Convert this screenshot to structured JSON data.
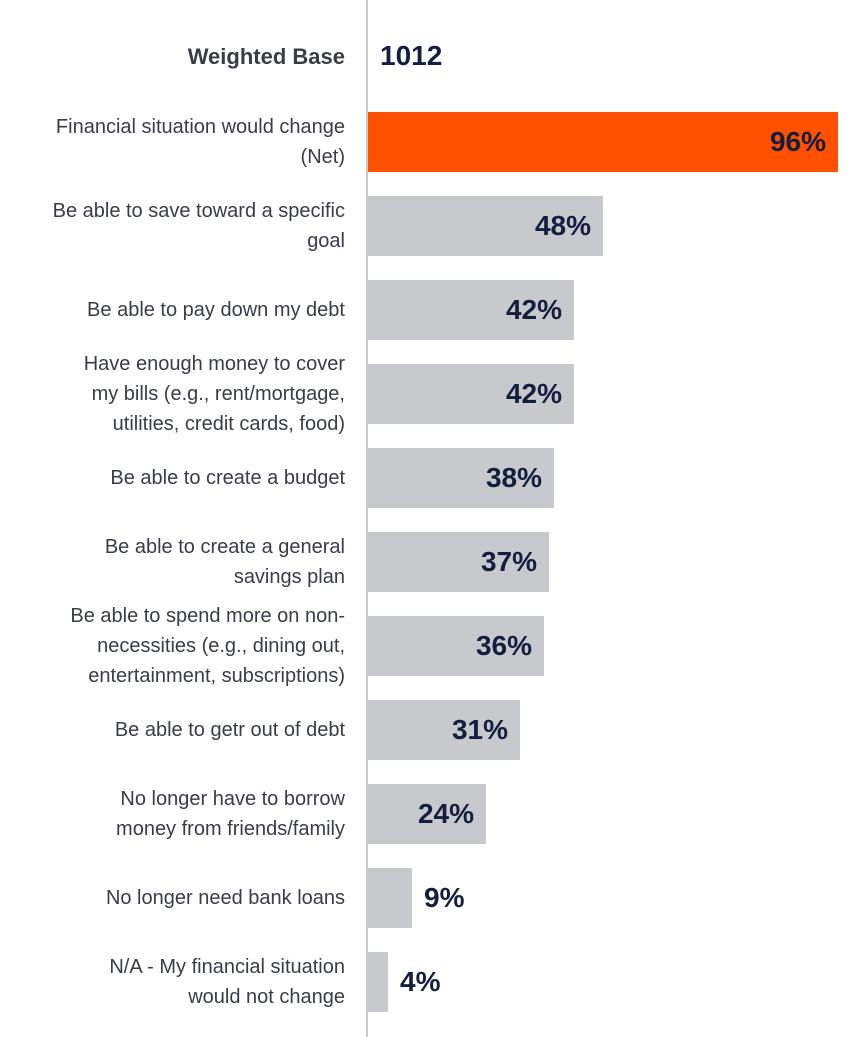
{
  "chart_data": {
    "type": "bar",
    "orientation": "horizontal",
    "weighted_base_label": "Weighted Base",
    "weighted_base_value": "1012",
    "categories": [
      "Financial situation would change (Net)",
      "Be able to save toward a specific goal",
      "Be able to pay down my debt",
      "Have enough money to cover my bills (e.g., rent/mortgage, utilities, credit cards, food)",
      "Be able to create a budget",
      "Be able to create a general savings plan",
      "Be able to spend more on non-necessities (e.g., dining out, entertainment, subscriptions)",
      "Be able to getr out of debt",
      "No longer have to borrow money from friends/family",
      "No longer need bank loans",
      "N/A - My financial situation would not change"
    ],
    "label_lines": [
      [
        "Financial situation would change",
        "(Net)"
      ],
      [
        "Be able to save toward a specific",
        "goal"
      ],
      [
        "Be able to pay down my debt"
      ],
      [
        "Have enough money to cover",
        "my bills (e.g., rent/mortgage,",
        "utilities, credit cards, food)"
      ],
      [
        "Be able to create a budget"
      ],
      [
        "Be able to create a general",
        "savings plan"
      ],
      [
        "Be able to spend more on non-",
        "necessities (e.g., dining out,",
        "entertainment, subscriptions)"
      ],
      [
        "Be able to getr out of debt"
      ],
      [
        "No longer have to borrow",
        "money from friends/family"
      ],
      [
        "No longer need bank loans"
      ],
      [
        "N/A - My financial situation",
        "would not change"
      ]
    ],
    "values": [
      96,
      48,
      42,
      42,
      38,
      37,
      36,
      31,
      24,
      9,
      4
    ],
    "value_labels": [
      "96%",
      "48%",
      "42%",
      "42%",
      "38%",
      "37%",
      "36%",
      "31%",
      "24%",
      "9%",
      "4%"
    ],
    "xlim": [
      0,
      96
    ],
    "colors": {
      "highlight": "#ff5000",
      "default": "#c8c9cc",
      "text_dark": "#141f40",
      "label_text": "#3a3d47",
      "axis": "#c8c9cc"
    }
  }
}
